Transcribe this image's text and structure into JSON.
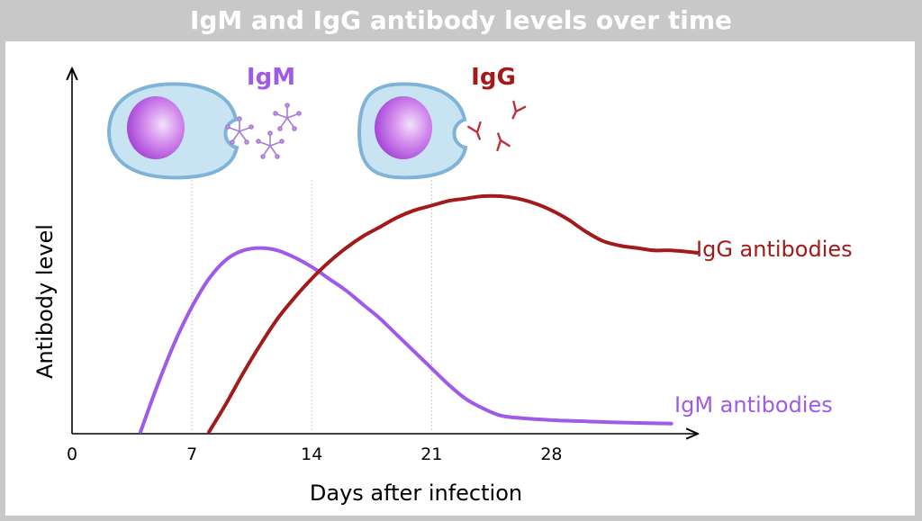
{
  "chart_data": {
    "type": "line",
    "title": "IgM and IgG antibody levels over time",
    "xlabel": "Days after infection",
    "ylabel": "Antibody level",
    "xlim": [
      0,
      36
    ],
    "ylim": [
      0,
      1
    ],
    "xticks": [
      0,
      7,
      14,
      21,
      28
    ],
    "grid_vlines": [
      7,
      14,
      21
    ],
    "series": [
      {
        "name": "IgM antibodies",
        "color": "#a05ae8",
        "x": [
          4,
          5,
          6,
          7,
          8,
          9,
          10,
          11,
          12,
          13,
          14,
          15,
          16,
          17,
          18,
          19,
          20,
          21,
          22,
          23,
          24,
          25,
          26,
          28,
          30,
          32,
          35
        ],
        "y": [
          0.0,
          0.2,
          0.38,
          0.53,
          0.65,
          0.73,
          0.77,
          0.78,
          0.77,
          0.74,
          0.7,
          0.65,
          0.6,
          0.54,
          0.48,
          0.41,
          0.34,
          0.27,
          0.2,
          0.14,
          0.1,
          0.07,
          0.06,
          0.05,
          0.045,
          0.04,
          0.035
        ]
      },
      {
        "name": "IgG antibodies",
        "color": "#a31a1a",
        "x": [
          8,
          9,
          10,
          11,
          12,
          13,
          14,
          15,
          16,
          17,
          18,
          19,
          20,
          21,
          22,
          23,
          24,
          25,
          26,
          27,
          28,
          29,
          30,
          31,
          32,
          33,
          34,
          35,
          36.5
        ],
        "y": [
          0.0,
          0.12,
          0.25,
          0.37,
          0.48,
          0.57,
          0.65,
          0.72,
          0.78,
          0.83,
          0.87,
          0.91,
          0.94,
          0.96,
          0.98,
          0.99,
          1.0,
          1.0,
          0.99,
          0.97,
          0.94,
          0.9,
          0.85,
          0.81,
          0.79,
          0.78,
          0.77,
          0.77,
          0.76
        ]
      }
    ],
    "annotations": {
      "igm_label": "IgM",
      "igg_label": "IgG",
      "igm_color": "#a05ae8",
      "igg_color": "#a31a1a"
    }
  }
}
